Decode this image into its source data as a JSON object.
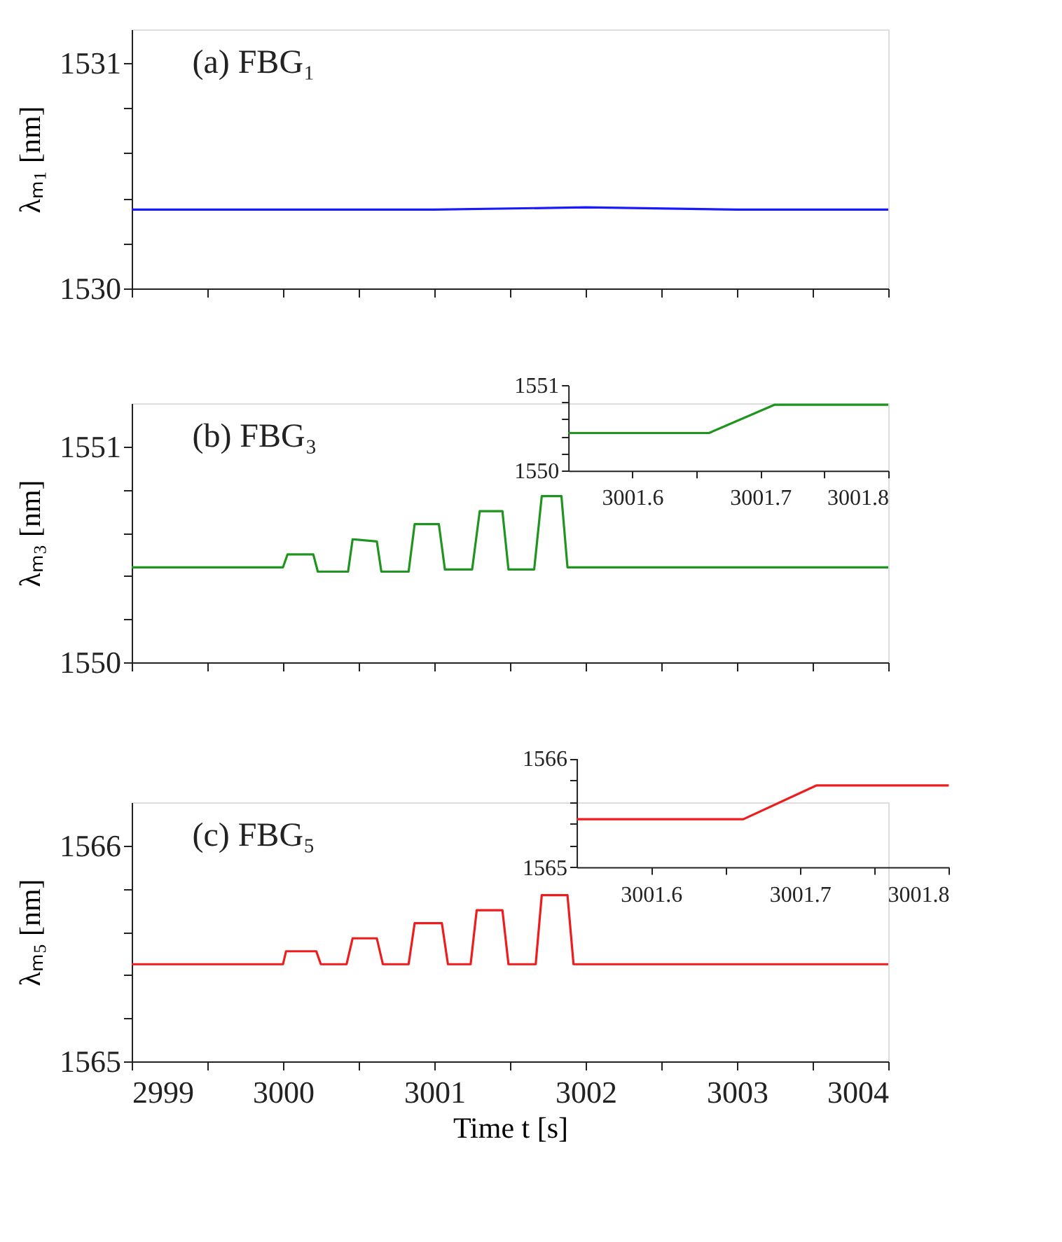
{
  "chart_data": [
    {
      "type": "line",
      "title": "(a) FBG₁",
      "ylabel": "λₘ₁ [nm]",
      "x": [
        2999,
        3000,
        3001,
        3002,
        3003,
        3004
      ],
      "values": [
        1530.35,
        1530.35,
        1530.35,
        1530.36,
        1530.35,
        1530.35
      ],
      "color": "#1a1aff",
      "xlim": [
        2999,
        3004
      ],
      "ylim": [
        1530,
        1531.15
      ],
      "xticks": [
        {
          "value": 2999,
          "label": null
        },
        {
          "value": 2999.5,
          "label": null
        },
        {
          "value": 3000,
          "label": null
        },
        {
          "value": 3000.5,
          "label": null
        },
        {
          "value": 3001,
          "label": null
        },
        {
          "value": 3001.5,
          "label": null
        },
        {
          "value": 3002,
          "label": null
        },
        {
          "value": 3002.5,
          "label": null
        },
        {
          "value": 3003,
          "label": null
        },
        {
          "value": 3003.5,
          "label": null
        },
        {
          "value": 3004,
          "label": null
        }
      ],
      "yticks": [
        1530,
        {
          "value": 1530.2,
          "label": null
        },
        {
          "value": 1530.4,
          "label": null
        },
        {
          "value": 1530.6,
          "label": null
        },
        {
          "value": 1530.8,
          "label": null
        },
        1531
      ],
      "tick_labels": "y"
    },
    {
      "type": "line",
      "title": "(b) FBG₃",
      "ylabel": "λₘ₃ [nm]",
      "x": [
        2999,
        3000.0,
        3000.03,
        3000.2,
        3000.23,
        3000.43,
        3000.46,
        3000.62,
        3000.65,
        3000.83,
        3000.87,
        3001.03,
        3001.07,
        3001.25,
        3001.3,
        3001.45,
        3001.49,
        3001.66,
        3001.71,
        3001.84,
        3001.88,
        3004
      ],
      "values": [
        1550.44,
        1550.44,
        1550.5,
        1550.5,
        1550.42,
        1550.42,
        1550.57,
        1550.56,
        1550.42,
        1550.42,
        1550.64,
        1550.64,
        1550.43,
        1550.43,
        1550.7,
        1550.7,
        1550.43,
        1550.43,
        1550.77,
        1550.77,
        1550.44,
        1550.44
      ],
      "color": "#1f951f",
      "xlim": [
        2999,
        3004
      ],
      "ylim": [
        1550,
        1551.2
      ],
      "xticks": [
        {
          "value": 2999,
          "label": null
        },
        {
          "value": 2999.5,
          "label": null
        },
        {
          "value": 3000,
          "label": null
        },
        {
          "value": 3000.5,
          "label": null
        },
        {
          "value": 3001,
          "label": null
        },
        {
          "value": 3001.5,
          "label": null
        },
        {
          "value": 3002,
          "label": null
        },
        {
          "value": 3002.5,
          "label": null
        },
        {
          "value": 3003,
          "label": null
        },
        {
          "value": 3003.5,
          "label": null
        },
        {
          "value": 3004,
          "label": null
        }
      ],
      "yticks": [
        1550,
        {
          "value": 1550.2,
          "label": null
        },
        {
          "value": 1550.4,
          "label": null
        },
        {
          "value": 1550.6,
          "label": null
        },
        {
          "value": 1550.8,
          "label": null
        },
        1551
      ],
      "tick_labels": "y"
    },
    {
      "type": "line",
      "x": [
        3001.55,
        3001.66,
        3001.711,
        3001.8
      ],
      "values": [
        1550.44,
        1550.44,
        1550.77,
        1550.77
      ],
      "color": "#1f951f",
      "xlim": [
        3001.55,
        3001.8
      ],
      "ylim": [
        1550,
        1551
      ],
      "xticks": [
        3001.6,
        {
          "value": 3001.65,
          "label": null
        },
        3001.7,
        {
          "value": 3001.75,
          "label": null
        },
        3001.8
      ],
      "yticks": [
        1550,
        {
          "value": 1550.2,
          "label": null
        },
        {
          "value": 1550.4,
          "label": null
        },
        {
          "value": 1550.6,
          "label": null
        },
        {
          "value": 1550.8,
          "label": null
        },
        1551
      ]
    },
    {
      "type": "line",
      "title": "(c) FBG₅",
      "ylabel": "λₘ₅ [nm]",
      "xlabel": "Time t [s]",
      "x": [
        2999,
        3000.0,
        3000.02,
        3000.22,
        3000.25,
        3000.42,
        3000.46,
        3000.62,
        3000.66,
        3000.83,
        3000.87,
        3001.05,
        3001.09,
        3001.24,
        3001.28,
        3001.45,
        3001.49,
        3001.67,
        3001.71,
        3001.88,
        3001.92,
        3004
      ],
      "values": [
        1565.45,
        1565.45,
        1565.51,
        1565.51,
        1565.45,
        1565.45,
        1565.57,
        1565.57,
        1565.45,
        1565.45,
        1565.64,
        1565.64,
        1565.45,
        1565.45,
        1565.7,
        1565.7,
        1565.45,
        1565.45,
        1565.77,
        1565.77,
        1565.45,
        1565.45
      ],
      "color": "#ee1c1c",
      "xlim": [
        2999,
        3004
      ],
      "ylim": [
        1565,
        1566.2
      ],
      "xticks": [
        2999,
        {
          "value": 2999.5,
          "label": null
        },
        3000,
        {
          "value": 3000.5,
          "label": null
        },
        3001,
        {
          "value": 3001.5,
          "label": null
        },
        3002,
        {
          "value": 3002.5,
          "label": null
        },
        3003,
        {
          "value": 3003.5,
          "label": null
        },
        3004
      ],
      "yticks": [
        1565,
        {
          "value": 1565.2,
          "label": null
        },
        {
          "value": 1565.4,
          "label": null
        },
        {
          "value": 1565.6,
          "label": null
        },
        {
          "value": 1565.8,
          "label": null
        },
        1566
      ]
    },
    {
      "type": "line",
      "x": [
        3001.55,
        3001.662,
        3001.711,
        3001.8
      ],
      "values": [
        1565.44,
        1565.44,
        1565.75,
        1565.75
      ],
      "color": "#ee1c1c",
      "xlim": [
        3001.55,
        3001.8
      ],
      "ylim": [
        1565,
        1566
      ],
      "xticks": [
        3001.6,
        {
          "value": 3001.65,
          "label": null
        },
        3001.7,
        {
          "value": 3001.75,
          "label": null
        },
        3001.8
      ],
      "yticks": [
        1565,
        {
          "value": 1565.2,
          "label": null
        },
        {
          "value": 1565.4,
          "label": null
        },
        {
          "value": 1565.6,
          "label": null
        },
        {
          "value": 1565.8,
          "label": null
        },
        1566
      ]
    }
  ]
}
